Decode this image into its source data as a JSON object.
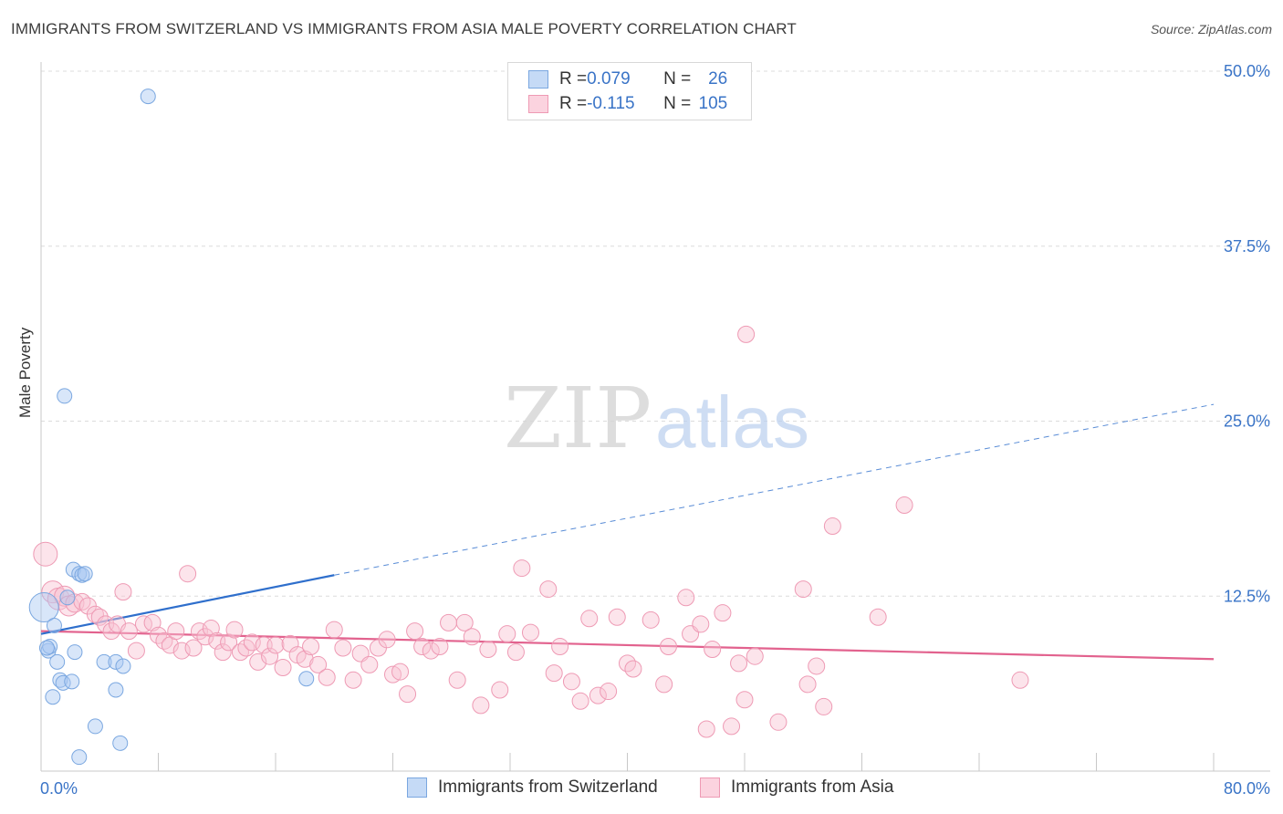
{
  "title": "IMMIGRANTS FROM SWITZERLAND VS IMMIGRANTS FROM ASIA MALE POVERTY CORRELATION CHART",
  "source": "Source: ZipAtlas.com",
  "watermark": {
    "zip": "ZIP",
    "atlas": "atlas"
  },
  "legend": {
    "items": [
      {
        "r_label": "R = ",
        "r_value": "0.079",
        "n_label": "N = ",
        "n_value": "26",
        "color": "#a9c8f1",
        "border": "#7aa7e0"
      },
      {
        "r_label": "R = ",
        "r_value": "-0.115",
        "n_label": "N = ",
        "n_value": "105",
        "color": "#f8c3d3",
        "border": "#ee9ab4"
      }
    ]
  },
  "bottom_legend": [
    {
      "label": "Immigrants from Switzerland",
      "color": "#c5daf6",
      "border": "#7aa7e0"
    },
    {
      "label": "Immigrants from Asia",
      "color": "#fbd3df",
      "border": "#ee9ab4"
    }
  ],
  "chart_data": {
    "type": "scatter",
    "title": "IMMIGRANTS FROM SWITZERLAND VS IMMIGRANTS FROM ASIA MALE POVERTY CORRELATION CHART",
    "xlabel": "",
    "ylabel": "Male Poverty",
    "xlim": [
      0,
      80
    ],
    "ylim": [
      0,
      50
    ],
    "x_tick_labels": [
      "0.0%",
      "80.0%"
    ],
    "y_ticks": [
      12.5,
      25.0,
      37.5,
      50.0
    ],
    "y_tick_labels": [
      "12.5%",
      "25.0%",
      "37.5%",
      "50.0%"
    ],
    "grid": true,
    "series": [
      {
        "name": "Immigrants from Switzerland",
        "color": "#7aa7e0",
        "fill": "rgba(169,200,241,0.45)",
        "trend": {
          "x": [
            0,
            20
          ],
          "y": [
            9.8,
            14.0
          ],
          "dashed_to_x": 80,
          "dashed_to_y": 26.2,
          "color": "#2f6fcc"
        },
        "points": [
          {
            "x": 7.3,
            "y": 48.2
          },
          {
            "x": 1.6,
            "y": 26.8
          },
          {
            "x": 0.2,
            "y": 11.7
          },
          {
            "x": 0.5,
            "y": 8.6
          },
          {
            "x": 0.6,
            "y": 8.9
          },
          {
            "x": 0.9,
            "y": 10.4
          },
          {
            "x": 1.1,
            "y": 7.8
          },
          {
            "x": 1.3,
            "y": 6.5
          },
          {
            "x": 1.5,
            "y": 6.3
          },
          {
            "x": 1.8,
            "y": 12.4
          },
          {
            "x": 2.1,
            "y": 6.4
          },
          {
            "x": 2.2,
            "y": 14.4
          },
          {
            "x": 2.3,
            "y": 8.5
          },
          {
            "x": 2.6,
            "y": 14.1
          },
          {
            "x": 2.8,
            "y": 14.0
          },
          {
            "x": 3.0,
            "y": 14.1
          },
          {
            "x": 0.8,
            "y": 5.3
          },
          {
            "x": 3.7,
            "y": 3.2
          },
          {
            "x": 4.3,
            "y": 7.8
          },
          {
            "x": 5.1,
            "y": 7.8
          },
          {
            "x": 5.6,
            "y": 7.5
          },
          {
            "x": 5.1,
            "y": 5.8
          },
          {
            "x": 5.4,
            "y": 2.0
          },
          {
            "x": 2.6,
            "y": 1.0
          },
          {
            "x": 18.1,
            "y": 6.6
          },
          {
            "x": 0.4,
            "y": 8.8
          }
        ]
      },
      {
        "name": "Immigrants from Asia",
        "color": "#ee9ab4",
        "fill": "rgba(248,195,211,0.45)",
        "trend": {
          "x": [
            0,
            80
          ],
          "y": [
            10.0,
            8.0
          ],
          "color": "#e2628e"
        },
        "points": [
          {
            "x": 0.3,
            "y": 15.5
          },
          {
            "x": 0.8,
            "y": 12.8
          },
          {
            "x": 1.2,
            "y": 12.3
          },
          {
            "x": 1.6,
            "y": 12.5
          },
          {
            "x": 1.9,
            "y": 11.8
          },
          {
            "x": 2.3,
            "y": 12.0
          },
          {
            "x": 2.8,
            "y": 12.1
          },
          {
            "x": 3.2,
            "y": 11.8
          },
          {
            "x": 3.7,
            "y": 11.2
          },
          {
            "x": 4.0,
            "y": 11.0
          },
          {
            "x": 4.4,
            "y": 10.5
          },
          {
            "x": 4.8,
            "y": 10.0
          },
          {
            "x": 5.2,
            "y": 10.5
          },
          {
            "x": 5.6,
            "y": 12.8
          },
          {
            "x": 6.0,
            "y": 10.0
          },
          {
            "x": 6.5,
            "y": 8.6
          },
          {
            "x": 7.0,
            "y": 10.5
          },
          {
            "x": 7.6,
            "y": 10.6
          },
          {
            "x": 8.0,
            "y": 9.7
          },
          {
            "x": 8.4,
            "y": 9.3
          },
          {
            "x": 8.8,
            "y": 9.0
          },
          {
            "x": 9.2,
            "y": 10.0
          },
          {
            "x": 9.6,
            "y": 8.6
          },
          {
            "x": 10.0,
            "y": 14.1
          },
          {
            "x": 10.4,
            "y": 8.8
          },
          {
            "x": 10.8,
            "y": 10.0
          },
          {
            "x": 11.2,
            "y": 9.6
          },
          {
            "x": 11.6,
            "y": 10.2
          },
          {
            "x": 12.0,
            "y": 9.3
          },
          {
            "x": 12.4,
            "y": 8.5
          },
          {
            "x": 12.8,
            "y": 9.2
          },
          {
            "x": 13.2,
            "y": 10.1
          },
          {
            "x": 13.6,
            "y": 8.5
          },
          {
            "x": 14.0,
            "y": 8.8
          },
          {
            "x": 14.4,
            "y": 9.2
          },
          {
            "x": 14.8,
            "y": 7.8
          },
          {
            "x": 15.2,
            "y": 9.0
          },
          {
            "x": 15.6,
            "y": 8.2
          },
          {
            "x": 16.0,
            "y": 9.0
          },
          {
            "x": 16.5,
            "y": 7.4
          },
          {
            "x": 17.0,
            "y": 9.1
          },
          {
            "x": 17.5,
            "y": 8.3
          },
          {
            "x": 18.0,
            "y": 8.0
          },
          {
            "x": 18.4,
            "y": 8.9
          },
          {
            "x": 18.9,
            "y": 7.6
          },
          {
            "x": 19.5,
            "y": 6.7
          },
          {
            "x": 20.0,
            "y": 10.1
          },
          {
            "x": 20.6,
            "y": 8.8
          },
          {
            "x": 21.3,
            "y": 6.5
          },
          {
            "x": 21.8,
            "y": 8.4
          },
          {
            "x": 22.4,
            "y": 7.6
          },
          {
            "x": 23.0,
            "y": 8.8
          },
          {
            "x": 23.6,
            "y": 9.4
          },
          {
            "x": 24.0,
            "y": 6.9
          },
          {
            "x": 24.5,
            "y": 7.1
          },
          {
            "x": 25.0,
            "y": 5.5
          },
          {
            "x": 25.5,
            "y": 10.0
          },
          {
            "x": 26.0,
            "y": 8.9
          },
          {
            "x": 26.6,
            "y": 8.6
          },
          {
            "x": 27.2,
            "y": 8.9
          },
          {
            "x": 27.8,
            "y": 10.6
          },
          {
            "x": 28.4,
            "y": 6.5
          },
          {
            "x": 28.9,
            "y": 10.6
          },
          {
            "x": 29.4,
            "y": 9.6
          },
          {
            "x": 30.0,
            "y": 4.7
          },
          {
            "x": 30.5,
            "y": 8.7
          },
          {
            "x": 31.3,
            "y": 5.8
          },
          {
            "x": 31.8,
            "y": 9.8
          },
          {
            "x": 32.4,
            "y": 8.5
          },
          {
            "x": 32.8,
            "y": 14.5
          },
          {
            "x": 33.4,
            "y": 9.9
          },
          {
            "x": 34.6,
            "y": 13.0
          },
          {
            "x": 35.0,
            "y": 7.0
          },
          {
            "x": 35.4,
            "y": 8.9
          },
          {
            "x": 36.2,
            "y": 6.4
          },
          {
            "x": 36.8,
            "y": 5.0
          },
          {
            "x": 37.4,
            "y": 10.9
          },
          {
            "x": 38.0,
            "y": 5.4
          },
          {
            "x": 38.7,
            "y": 5.7
          },
          {
            "x": 39.3,
            "y": 11.0
          },
          {
            "x": 40.0,
            "y": 7.7
          },
          {
            "x": 40.4,
            "y": 7.3
          },
          {
            "x": 41.6,
            "y": 10.8
          },
          {
            "x": 42.5,
            "y": 6.2
          },
          {
            "x": 42.8,
            "y": 8.9
          },
          {
            "x": 44.0,
            "y": 12.4
          },
          {
            "x": 44.3,
            "y": 9.8
          },
          {
            "x": 45.0,
            "y": 10.5
          },
          {
            "x": 45.4,
            "y": 3.0
          },
          {
            "x": 45.8,
            "y": 8.7
          },
          {
            "x": 46.5,
            "y": 11.3
          },
          {
            "x": 47.1,
            "y": 3.2
          },
          {
            "x": 47.6,
            "y": 7.7
          },
          {
            "x": 48.1,
            "y": 31.2
          },
          {
            "x": 48.0,
            "y": 5.1
          },
          {
            "x": 48.7,
            "y": 8.2
          },
          {
            "x": 50.3,
            "y": 3.5
          },
          {
            "x": 52.0,
            "y": 13.0
          },
          {
            "x": 52.3,
            "y": 6.2
          },
          {
            "x": 52.9,
            "y": 7.5
          },
          {
            "x": 53.4,
            "y": 4.6
          },
          {
            "x": 54.0,
            "y": 17.5
          },
          {
            "x": 57.1,
            "y": 11.0
          },
          {
            "x": 58.9,
            "y": 19.0
          },
          {
            "x": 66.8,
            "y": 6.5
          }
        ]
      }
    ]
  }
}
